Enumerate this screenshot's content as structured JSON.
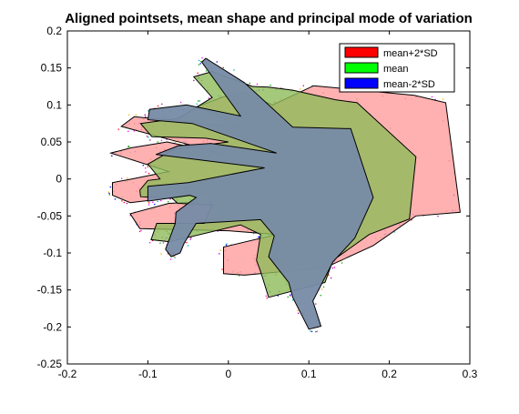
{
  "chart_data": {
    "type": "scatter",
    "title": "Aligned pointsets, mean shape and principal mode of variation",
    "xlabel": "",
    "ylabel": "",
    "xlim": [
      -0.2,
      0.3
    ],
    "ylim": [
      -0.25,
      0.2
    ],
    "xticks": [
      "-0.2",
      "-0.1",
      "0",
      "0.1",
      "0.2",
      "0.3"
    ],
    "yticks": [
      "0.2",
      "0.15",
      "0.1",
      "0.05",
      "0",
      "-0.05",
      "-0.1",
      "-0.15",
      "-0.2",
      "-0.25"
    ],
    "grid": false,
    "legend_position": "top-right",
    "colors": {
      "plus": "#ff0000",
      "mean": "#00ff00",
      "minus": "#0000ff"
    },
    "series": [
      {
        "name": "mean+2*SD",
        "color": "#ff0000",
        "fill": "#ff9e9e",
        "points": [
          [
            -0.144,
            -0.005
          ],
          [
            -0.12,
            0.0
          ],
          [
            -0.074,
            0.01
          ],
          [
            -0.146,
            0.035
          ],
          [
            -0.121,
            0.042
          ],
          [
            -0.076,
            0.05
          ],
          [
            0.01,
            0.03
          ],
          [
            -0.076,
            0.054
          ],
          [
            -0.133,
            0.071
          ],
          [
            -0.117,
            0.084
          ],
          [
            0.015,
            0.07
          ],
          [
            -0.038,
            0.098
          ],
          [
            -0.006,
            0.111
          ],
          [
            0.02,
            0.116
          ],
          [
            0.055,
            0.1
          ],
          [
            0.106,
            0.126
          ],
          [
            0.231,
            0.113
          ],
          [
            0.27,
            0.103
          ],
          [
            0.288,
            -0.045
          ],
          [
            0.233,
            -0.05
          ],
          [
            0.18,
            -0.09
          ],
          [
            0.12,
            -0.12
          ],
          [
            0.02,
            -0.13
          ],
          [
            -0.006,
            -0.128
          ],
          [
            -0.006,
            -0.092
          ],
          [
            0.06,
            -0.075
          ],
          [
            0.0,
            -0.07
          ],
          [
            -0.11,
            -0.067
          ],
          [
            -0.122,
            -0.047
          ],
          [
            -0.074,
            -0.033
          ],
          [
            -0.02,
            -0.03
          ],
          [
            -0.028,
            -0.02
          ],
          [
            -0.122,
            -0.032
          ],
          [
            -0.144,
            -0.022
          ]
        ]
      },
      {
        "name": "mean",
        "color": "#00ff00",
        "fill": "#8fbc5a",
        "points": [
          [
            -0.11,
            -0.015
          ],
          [
            -0.1,
            -0.002
          ],
          [
            -0.085,
            0.0
          ],
          [
            -0.1,
            0.02
          ],
          [
            -0.068,
            0.04
          ],
          [
            0.0,
            0.05
          ],
          [
            -0.028,
            0.055
          ],
          [
            -0.095,
            0.057
          ],
          [
            -0.109,
            0.075
          ],
          [
            -0.062,
            0.082
          ],
          [
            -0.02,
            0.11
          ],
          [
            -0.043,
            0.138
          ],
          [
            -0.02,
            0.145
          ],
          [
            0.03,
            0.125
          ],
          [
            0.05,
            0.124
          ],
          [
            0.08,
            0.12
          ],
          [
            0.133,
            0.107
          ],
          [
            0.16,
            0.103
          ],
          [
            0.233,
            0.03
          ],
          [
            0.225,
            -0.054
          ],
          [
            0.175,
            -0.075
          ],
          [
            0.13,
            -0.11
          ],
          [
            0.12,
            -0.14
          ],
          [
            0.05,
            -0.16
          ],
          [
            0.04,
            -0.125
          ],
          [
            0.035,
            -0.11
          ],
          [
            0.04,
            -0.075
          ],
          [
            0.015,
            -0.062
          ],
          [
            -0.073,
            -0.085
          ],
          [
            -0.096,
            -0.082
          ],
          [
            -0.089,
            -0.06
          ],
          [
            -0.03,
            -0.06
          ],
          [
            -0.02,
            -0.035
          ],
          [
            -0.063,
            -0.033
          ],
          [
            -0.07,
            -0.026
          ],
          [
            -0.109,
            -0.024
          ]
        ]
      },
      {
        "name": "mean-2*SD",
        "color": "#0000ff",
        "fill": "#778ba7",
        "points": [
          [
            -0.1,
            -0.01
          ],
          [
            -0.05,
            -0.005
          ],
          [
            0.045,
            0.015
          ],
          [
            -0.09,
            0.033
          ],
          [
            -0.062,
            0.045
          ],
          [
            -0.022,
            0.048
          ],
          [
            0.06,
            0.035
          ],
          [
            -0.045,
            0.075
          ],
          [
            -0.1,
            0.08
          ],
          [
            -0.098,
            0.094
          ],
          [
            -0.052,
            0.1
          ],
          [
            0.015,
            0.085
          ],
          [
            -0.033,
            0.158
          ],
          [
            -0.028,
            0.163
          ],
          [
            0.02,
            0.13
          ],
          [
            0.08,
            0.07
          ],
          [
            0.152,
            0.068
          ],
          [
            0.18,
            -0.025
          ],
          [
            0.157,
            -0.08
          ],
          [
            0.13,
            -0.112
          ],
          [
            0.105,
            -0.165
          ],
          [
            0.115,
            -0.199
          ],
          [
            0.1,
            -0.203
          ],
          [
            0.08,
            -0.16
          ],
          [
            0.075,
            -0.14
          ],
          [
            0.05,
            -0.105
          ],
          [
            0.057,
            -0.077
          ],
          [
            0.04,
            -0.055
          ],
          [
            -0.04,
            -0.06
          ],
          [
            -0.055,
            -0.087
          ],
          [
            -0.06,
            -0.1
          ],
          [
            -0.071,
            -0.105
          ],
          [
            -0.078,
            -0.095
          ],
          [
            -0.066,
            -0.06
          ],
          [
            -0.065,
            -0.045
          ],
          [
            -0.04,
            -0.025
          ],
          [
            -0.048,
            -0.022
          ],
          [
            -0.1,
            -0.03
          ]
        ]
      }
    ]
  }
}
